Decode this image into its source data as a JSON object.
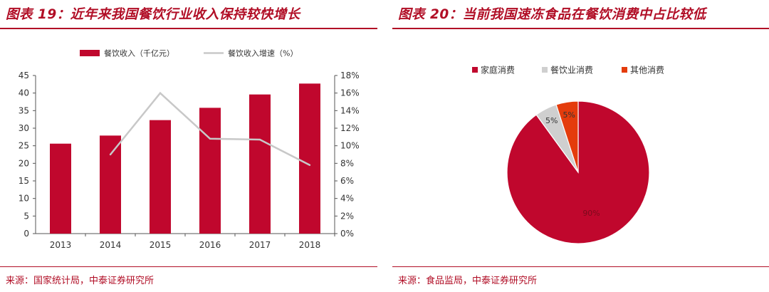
{
  "left": {
    "title": "图表 19：近年来我国餐饮行业收入保持较快增长",
    "source": "来源：国家统计局，中泰证券研究所"
  },
  "right": {
    "title": "图表 20：当前我国速冻食品在餐饮消费中占比较低",
    "source": "来源：食品监局，中泰证券研究所"
  },
  "colors": {
    "accent": "#b10e26",
    "bar": "#c0072d",
    "line": "#c8c8c8",
    "grey_slice": "#cfcfcf",
    "orange_slice": "#e43c0c"
  },
  "chart_data": [
    {
      "type": "bar",
      "categories": [
        "2013",
        "2014",
        "2015",
        "2016",
        "2017",
        "2018"
      ],
      "series": [
        {
          "name": "餐饮收入（千亿元）",
          "type": "bar",
          "axis": "left",
          "values": [
            25.6,
            27.9,
            32.3,
            35.8,
            39.6,
            42.7
          ]
        },
        {
          "name": "餐饮收入增速（%）",
          "type": "line",
          "axis": "right",
          "values": [
            null,
            9.0,
            16.0,
            10.8,
            10.7,
            7.8
          ]
        }
      ],
      "y_left": {
        "ticks": [
          "0",
          "5",
          "10",
          "15",
          "20",
          "25",
          "30",
          "35",
          "40",
          "45"
        ],
        "ylim": [
          0,
          45
        ]
      },
      "y_right": {
        "ticks": [
          "0%",
          "2%",
          "4%",
          "6%",
          "8%",
          "10%",
          "12%",
          "14%",
          "16%",
          "18%"
        ],
        "ylim": [
          0,
          18
        ]
      },
      "legend_position": "top-center",
      "grid": false
    },
    {
      "type": "pie",
      "labels": [
        "家庭消费",
        "餐饮业消费",
        "其他消费"
      ],
      "values": [
        90,
        5,
        5
      ],
      "data_labels": [
        "90%",
        "5%",
        "5%"
      ],
      "colors": [
        "#c0072d",
        "#cfcfcf",
        "#e43c0c"
      ],
      "legend_position": "top-center"
    }
  ]
}
